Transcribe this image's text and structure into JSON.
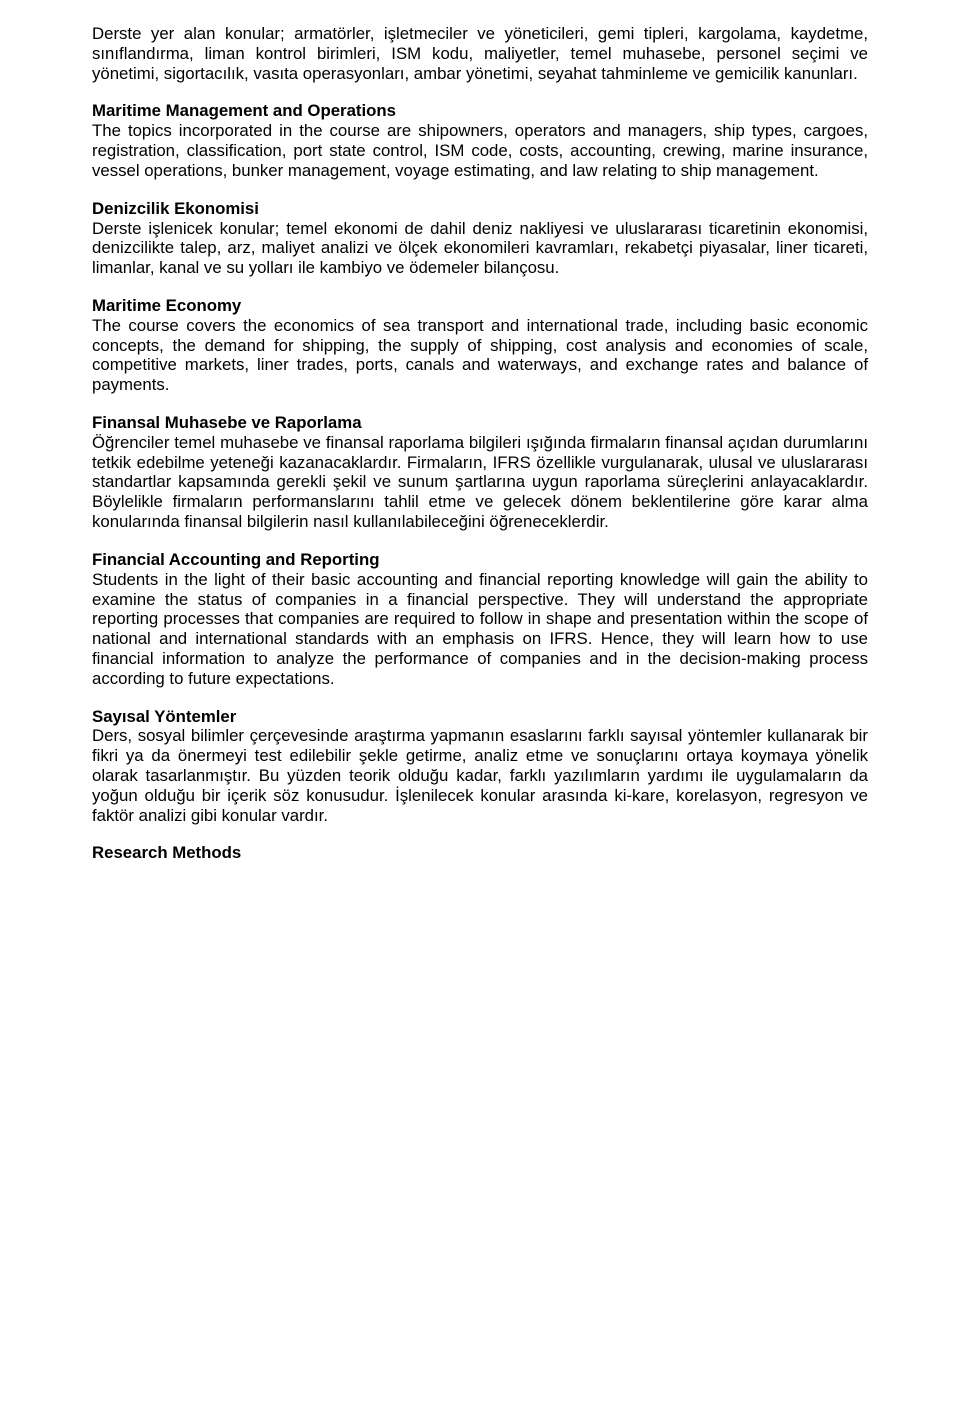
{
  "sections": [
    {
      "id": "intro-tr",
      "heading": null,
      "body": "Derste yer alan konular; armatörler, işletmeciler ve yöneticileri, gemi tipleri, kargolama, kaydetme, sınıflandırma, liman kontrol birimleri, ISM kodu, maliyetler, temel muhasebe, personel seçimi ve yönetimi, sigortacılık, vasıta operasyonları, ambar yönetimi, seyahat tahminleme ve gemicilik kanunları."
    },
    {
      "id": "maritime-mgmt",
      "heading": "Maritime Management and Operations",
      "body": "The topics incorporated in the course are shipowners, operators and managers, ship types, cargoes, registration, classification, port state control, ISM code, costs, accounting, crewing, marine insurance, vessel operations, bunker management, voyage estimating, and law relating to ship management."
    },
    {
      "id": "denizcilik",
      "heading": "Denizcilik Ekonomisi",
      "body": "Derste işlenicek konular; temel ekonomi de dahil deniz nakliyesi ve uluslararası ticaretinin ekonomisi, denizcilikte talep, arz, maliyet analizi ve ölçek ekonomileri kavramları, rekabetçi piyasalar, liner ticareti, limanlar, kanal ve su yolları ile kambiyo ve ödemeler bilançosu."
    },
    {
      "id": "maritime-econ",
      "heading": "Maritime Economy",
      "body": "The course covers the economics of sea transport and international trade, including basic economic concepts, the demand for shipping, the supply of shipping, cost analysis and economies of scale, competitive markets, liner trades, ports, canals and waterways, and exchange rates and balance of payments."
    },
    {
      "id": "finansal",
      "heading": "Finansal Muhasebe ve Raporlama",
      "body": "Öğrenciler temel muhasebe ve finansal raporlama bilgileri ışığında firmaların finansal açıdan durumlarını tetkik edebilme yeteneği kazanacaklardır. Firmaların, IFRS özellikle vurgulanarak, ulusal ve uluslararası standartlar kapsamında gerekli şekil ve sunum şartlarına uygun raporlama süreçlerini anlayacaklardır. Böylelikle firmaların performanslarını tahlil etme ve gelecek dönem beklentilerine göre karar alma konularında finansal bilgilerin nasıl kullanılabileceğini öğreneceklerdir."
    },
    {
      "id": "financial",
      "heading": "Financial Accounting and Reporting",
      "body": "Students in the light of their basic accounting and financial reporting knowledge will gain the ability to examine the status of companies in a financial perspective. They will understand the appropriate reporting processes that companies are required to follow in shape and presentation within the scope of national and international standards with an emphasis on IFRS. Hence, they will learn how to use financial information to analyze the performance of companies and in the decision-making process according to future expectations."
    },
    {
      "id": "sayisal",
      "heading": "Sayısal Yöntemler",
      "body": "Ders, sosyal bilimler çerçevesinde araştırma yapmanın esaslarını farklı sayısal yöntemler kullanarak bir fikri ya da önermeyi test edilebilir şekle getirme, analiz etme ve sonuçlarını ortaya koymaya yönelik olarak tasarlanmıştır. Bu yüzden teorik olduğu kadar, farklı yazılımların yardımı ile uygulamaların da yoğun olduğu bir içerik söz konusudur. İşlenilecek konular arasında ki-kare, korelasyon, regresyon ve faktör analizi gibi konular vardır."
    },
    {
      "id": "research",
      "heading": "Research Methods",
      "body": null
    }
  ]
}
